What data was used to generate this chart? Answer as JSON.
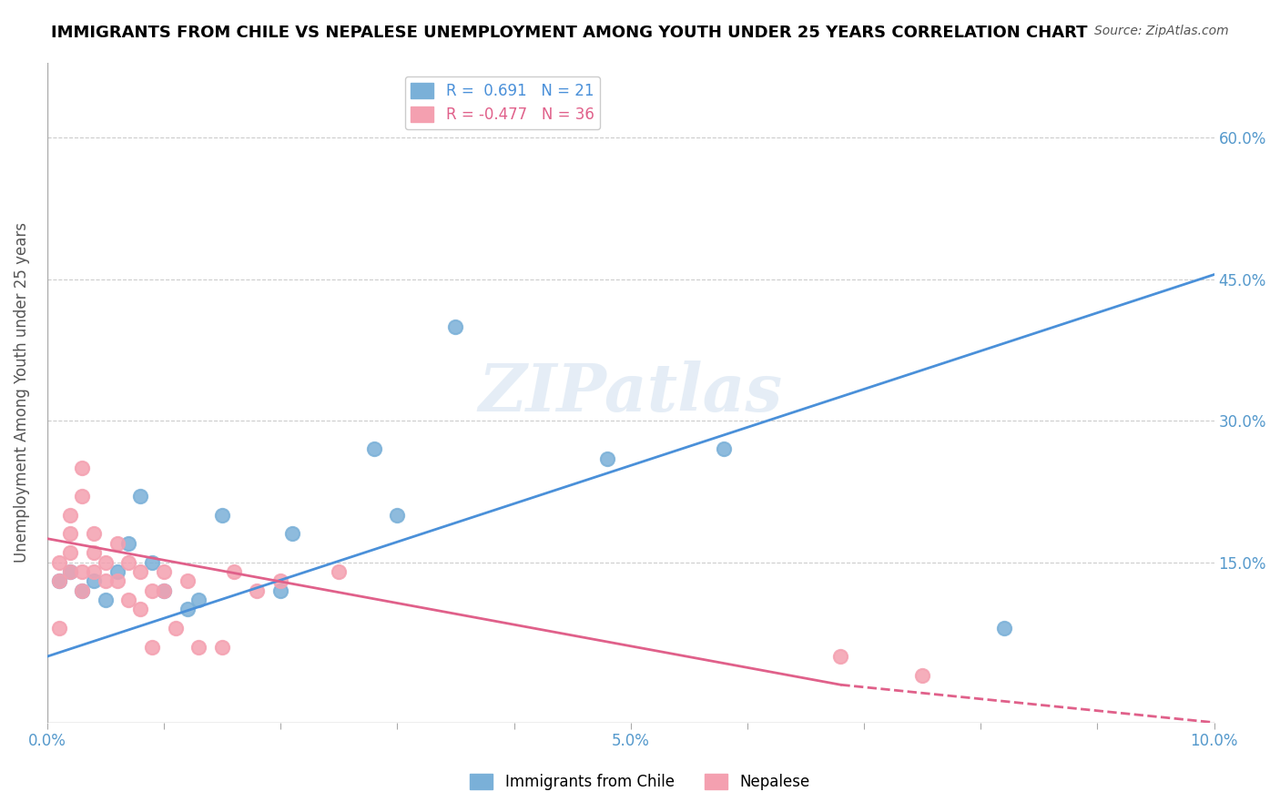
{
  "title": "IMMIGRANTS FROM CHILE VS NEPALESE UNEMPLOYMENT AMONG YOUTH UNDER 25 YEARS CORRELATION CHART",
  "source": "Source: ZipAtlas.com",
  "xlabel_bottom": "",
  "ylabel": "Unemployment Among Youth under 25 years",
  "x_ticks": [
    0.0,
    0.01,
    0.02,
    0.03,
    0.04,
    0.05,
    0.06,
    0.07,
    0.08,
    0.09,
    0.1
  ],
  "x_tick_labels": [
    "0.0%",
    "",
    "",
    "",
    "",
    "5.0%",
    "",
    "",
    "",
    "",
    "10.0%"
  ],
  "y_ticks": [
    0.0,
    0.15,
    0.3,
    0.45,
    0.6
  ],
  "y_tick_labels": [
    "",
    "15.0%",
    "30.0%",
    "45.0%",
    "60.0%"
  ],
  "xlim": [
    0.0,
    0.1
  ],
  "ylim": [
    -0.02,
    0.68
  ],
  "watermark": "ZIPatlas",
  "legend_blue_text": "R =  0.691   N = 21",
  "legend_pink_text": "R = -0.477   N = 36",
  "blue_color": "#7ab0d8",
  "pink_color": "#f4a0b0",
  "trend_blue_color": "#4a90d9",
  "trend_pink_color": "#e0608a",
  "blue_scatter": [
    [
      0.001,
      0.13
    ],
    [
      0.002,
      0.14
    ],
    [
      0.003,
      0.12
    ],
    [
      0.004,
      0.13
    ],
    [
      0.005,
      0.11
    ],
    [
      0.006,
      0.14
    ],
    [
      0.007,
      0.17
    ],
    [
      0.008,
      0.22
    ],
    [
      0.009,
      0.15
    ],
    [
      0.01,
      0.12
    ],
    [
      0.012,
      0.1
    ],
    [
      0.013,
      0.11
    ],
    [
      0.015,
      0.2
    ],
    [
      0.02,
      0.12
    ],
    [
      0.021,
      0.18
    ],
    [
      0.028,
      0.27
    ],
    [
      0.03,
      0.2
    ],
    [
      0.035,
      0.4
    ],
    [
      0.048,
      0.26
    ],
    [
      0.058,
      0.27
    ],
    [
      0.082,
      0.08
    ]
  ],
  "pink_scatter": [
    [
      0.001,
      0.13
    ],
    [
      0.001,
      0.15
    ],
    [
      0.001,
      0.08
    ],
    [
      0.002,
      0.14
    ],
    [
      0.002,
      0.16
    ],
    [
      0.002,
      0.18
    ],
    [
      0.002,
      0.2
    ],
    [
      0.003,
      0.12
    ],
    [
      0.003,
      0.14
    ],
    [
      0.003,
      0.22
    ],
    [
      0.003,
      0.25
    ],
    [
      0.004,
      0.14
    ],
    [
      0.004,
      0.16
    ],
    [
      0.004,
      0.18
    ],
    [
      0.005,
      0.13
    ],
    [
      0.005,
      0.15
    ],
    [
      0.006,
      0.17
    ],
    [
      0.006,
      0.13
    ],
    [
      0.007,
      0.11
    ],
    [
      0.007,
      0.15
    ],
    [
      0.008,
      0.14
    ],
    [
      0.008,
      0.1
    ],
    [
      0.009,
      0.12
    ],
    [
      0.009,
      0.06
    ],
    [
      0.01,
      0.12
    ],
    [
      0.01,
      0.14
    ],
    [
      0.011,
      0.08
    ],
    [
      0.012,
      0.13
    ],
    [
      0.013,
      0.06
    ],
    [
      0.015,
      0.06
    ],
    [
      0.016,
      0.14
    ],
    [
      0.018,
      0.12
    ],
    [
      0.02,
      0.13
    ],
    [
      0.025,
      0.14
    ],
    [
      0.068,
      0.05
    ],
    [
      0.075,
      0.03
    ]
  ],
  "blue_trendline": [
    [
      0.0,
      0.05
    ],
    [
      0.1,
      0.455
    ]
  ],
  "pink_trendline_solid": [
    [
      0.0,
      0.175
    ],
    [
      0.068,
      0.02
    ]
  ],
  "pink_trendline_dashed": [
    [
      0.068,
      0.02
    ],
    [
      0.1,
      -0.02
    ]
  ]
}
